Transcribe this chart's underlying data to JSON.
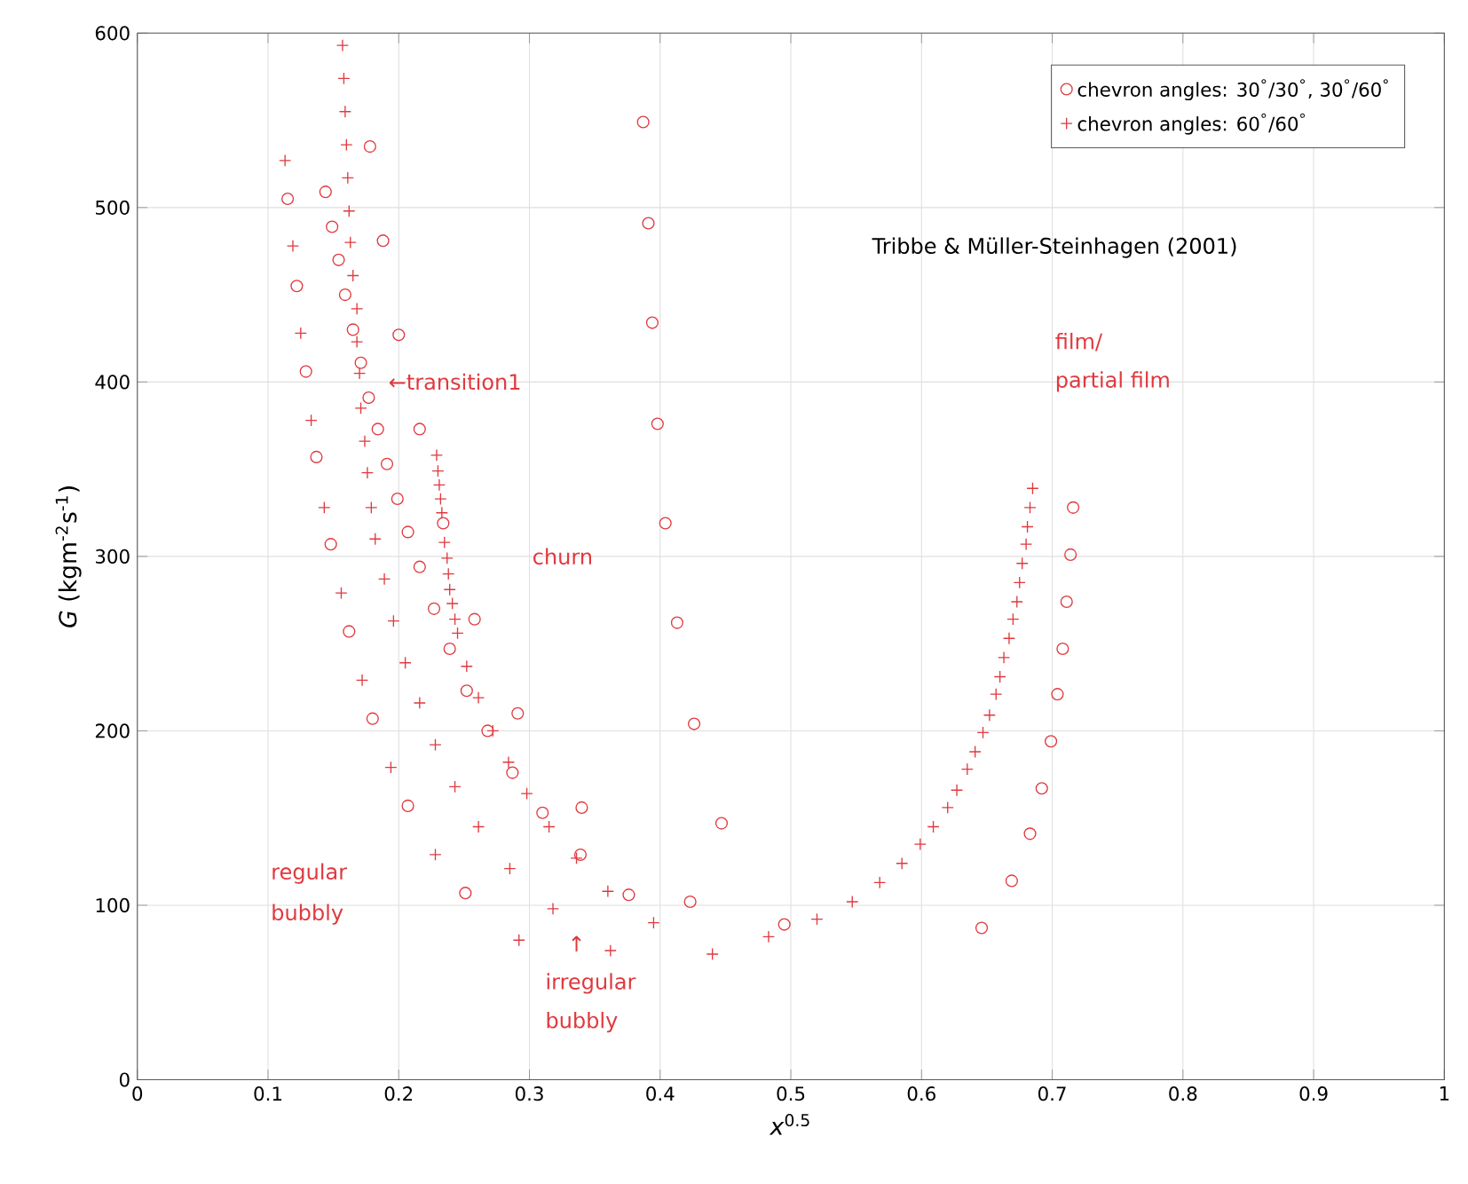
{
  "chart_data": {
    "type": "scatter",
    "xlabel": "*x*$^{0.5}$",
    "ylabel": "*G* (kgm$^{-2}$s$^{-1}$)",
    "xlim": [
      0,
      1
    ],
    "ylim": [
      0,
      600
    ],
    "xticks": [
      0,
      0.1,
      0.2,
      0.3,
      0.4,
      0.5,
      0.6,
      0.7,
      0.8,
      0.9,
      1
    ],
    "yticks": [
      0,
      100,
      200,
      300,
      400,
      500,
      600
    ],
    "grid": true,
    "legend": "top right",
    "series": [
      {
        "name": "chevron angles: 30$^{°}$/30$^{°}$, 30$^{°}$/60$^{°}$",
        "color": "#e0393e",
        "marker": "circle",
        "x": [
          0.178,
          0.115,
          0.144,
          0.149,
          0.188,
          0.154,
          0.122,
          0.159,
          0.165,
          0.2,
          0.129,
          0.171,
          0.177,
          0.184,
          0.216,
          0.137,
          0.191,
          0.199,
          0.234,
          0.207,
          0.148,
          0.216,
          0.227,
          0.258,
          0.162,
          0.239,
          0.252,
          0.291,
          0.18,
          0.268,
          0.287,
          0.207,
          0.31,
          0.34,
          0.339,
          0.251,
          0.376,
          0.387,
          0.391,
          0.394,
          0.398,
          0.404,
          0.413,
          0.426,
          0.447,
          0.423,
          0.495,
          0.646,
          0.669,
          0.683,
          0.692,
          0.699,
          0.704,
          0.708,
          0.711,
          0.714,
          0.716
        ],
        "values": [
          535,
          505,
          509,
          489,
          481,
          470,
          455,
          450,
          430,
          427,
          406,
          411,
          391,
          373,
          373,
          357,
          353,
          333,
          319,
          314,
          307,
          294,
          270,
          264,
          257,
          247,
          223,
          210,
          207,
          200,
          176,
          157,
          153,
          156,
          129,
          107,
          106,
          549,
          491,
          434,
          376,
          319,
          262,
          204,
          147,
          102,
          89,
          87,
          114,
          141,
          167,
          194,
          221,
          247,
          274,
          301,
          328
        ]
      },
      {
        "name": "chevron angles: 60$^{°}$/60$^{°}$",
        "color": "#e0393e",
        "marker": "cross",
        "x": [
          0.157,
          0.158,
          0.159,
          0.16,
          0.113,
          0.161,
          0.162,
          0.163,
          0.119,
          0.165,
          0.168,
          0.125,
          0.168,
          0.17,
          0.171,
          0.133,
          0.174,
          0.176,
          0.143,
          0.179,
          0.182,
          0.229,
          0.23,
          0.231,
          0.232,
          0.233,
          0.235,
          0.237,
          0.238,
          0.239,
          0.241,
          0.243,
          0.245,
          0.189,
          0.156,
          0.196,
          0.205,
          0.252,
          0.172,
          0.261,
          0.216,
          0.272,
          0.228,
          0.284,
          0.194,
          0.243,
          0.298,
          0.315,
          0.261,
          0.228,
          0.336,
          0.285,
          0.36,
          0.318,
          0.292,
          0.362,
          0.395,
          0.44,
          0.483,
          0.52,
          0.547,
          0.568,
          0.585,
          0.599,
          0.609,
          0.62,
          0.627,
          0.635,
          0.641,
          0.647,
          0.652,
          0.657,
          0.66,
          0.663,
          0.667,
          0.67,
          0.673,
          0.675,
          0.677,
          0.68,
          0.681,
          0.683,
          0.685
        ],
        "values": [
          593,
          574,
          555,
          536,
          527,
          517,
          498,
          480,
          478,
          461,
          442,
          428,
          423,
          405,
          385,
          378,
          366,
          348,
          328,
          328,
          310,
          358,
          349,
          341,
          333,
          325,
          308,
          299,
          290,
          281,
          273,
          264,
          256,
          287,
          279,
          263,
          239,
          237,
          229,
          219,
          216,
          200,
          192,
          182,
          179,
          168,
          164,
          145,
          145,
          129,
          127,
          121,
          108,
          98,
          80,
          74,
          90,
          72,
          82,
          92,
          102,
          113,
          124,
          135,
          145,
          156,
          166,
          178,
          188,
          199,
          209,
          221,
          231,
          242,
          253,
          264,
          274,
          285,
          296,
          307,
          317,
          328,
          339
        ]
      }
    ],
    "annotations": [
      "←transition1",
      "churn",
      "film/",
      "partial film",
      "regular",
      "bubbly",
      "↑",
      "irregular",
      "bubbly",
      "Tribbe & Müller-Steinhagen (2001)"
    ]
  }
}
